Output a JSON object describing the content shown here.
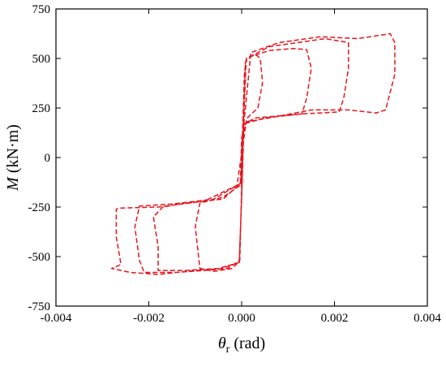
{
  "chart_data": {
    "type": "line",
    "title": "",
    "xlabel": {
      "symbol": "θ",
      "subscript": "r",
      "unit": " (rad)"
    },
    "ylabel": {
      "symbol": "M",
      "unit": " (kN·m)"
    },
    "xlim": [
      -0.004,
      0.004
    ],
    "ylim": [
      -750,
      750
    ],
    "x_ticks": [
      -0.004,
      -0.002,
      0.0,
      0.002,
      0.004
    ],
    "x_tick_labels": [
      "-0.004",
      "-0.002",
      "0.000",
      "0.002",
      "0.004"
    ],
    "y_ticks": [
      -750,
      -500,
      -250,
      0,
      250,
      500,
      750
    ],
    "y_tick_labels": [
      "-750",
      "-500",
      "-250",
      "0",
      "250",
      "500",
      "750"
    ],
    "grid": false,
    "line_color": "#e8141c",
    "line_style": "dashed",
    "series": [
      {
        "points": [
          [
            0.0,
            0
          ],
          [
            3e-05,
            200
          ],
          [
            6e-05,
            420
          ],
          [
            0.0001,
            500
          ],
          [
            0.0003,
            520
          ],
          [
            0.0004,
            500
          ],
          [
            0.00045,
            380
          ],
          [
            0.00035,
            250
          ],
          [
            0.00012,
            200
          ],
          [
            0.0,
            100
          ],
          [
            -3e-05,
            -140
          ],
          [
            -0.0004,
            -200
          ],
          [
            -0.0009,
            -230
          ],
          [
            -0.001,
            -350
          ],
          [
            -0.0009,
            -560
          ],
          [
            -0.0006,
            -575
          ],
          [
            -0.0002,
            -560
          ],
          [
            -4e-05,
            -520
          ],
          [
            0.0,
            -150
          ],
          [
            3e-05,
            150
          ],
          [
            8e-05,
            480
          ],
          [
            0.0002,
            510
          ],
          [
            0.0006,
            540
          ],
          [
            0.0011,
            550
          ],
          [
            0.0014,
            545
          ],
          [
            0.0015,
            450
          ],
          [
            0.0014,
            300
          ],
          [
            0.0013,
            220
          ],
          [
            0.0008,
            210
          ],
          [
            0.0003,
            200
          ],
          [
            5e-05,
            170
          ],
          [
            -2e-05,
            -130
          ],
          [
            -0.0004,
            -210
          ],
          [
            -0.0012,
            -230
          ],
          [
            -0.0017,
            -250
          ],
          [
            -0.0019,
            -300
          ],
          [
            -0.0018,
            -450
          ],
          [
            -0.0018,
            -570
          ],
          [
            -0.0012,
            -570
          ],
          [
            -0.0005,
            -560
          ],
          [
            -5e-05,
            -530
          ],
          [
            0.0,
            -200
          ],
          [
            4e-05,
            180
          ],
          [
            0.0001,
            500
          ],
          [
            0.0006,
            560
          ],
          [
            0.0012,
            580
          ],
          [
            0.0018,
            600
          ],
          [
            0.0023,
            580
          ],
          [
            0.0023,
            450
          ],
          [
            0.0022,
            300
          ],
          [
            0.0021,
            230
          ],
          [
            0.0013,
            220
          ],
          [
            0.0005,
            200
          ],
          [
            5e-05,
            170
          ],
          [
            -2e-05,
            -130
          ],
          [
            -0.0006,
            -210
          ],
          [
            -0.0015,
            -235
          ],
          [
            -0.0022,
            -245
          ],
          [
            -0.0023,
            -350
          ],
          [
            -0.0022,
            -520
          ],
          [
            -0.0021,
            -580
          ],
          [
            -0.0014,
            -580
          ],
          [
            -0.0005,
            -565
          ],
          [
            -5e-05,
            -530
          ],
          [
            0.0,
            -200
          ],
          [
            5e-05,
            180
          ],
          [
            0.0002,
            530
          ],
          [
            0.0008,
            580
          ],
          [
            0.0017,
            610
          ],
          [
            0.0025,
            600
          ],
          [
            0.0032,
            625
          ],
          [
            0.0033,
            580
          ],
          [
            0.0033,
            420
          ],
          [
            0.0031,
            240
          ],
          [
            0.0029,
            225
          ],
          [
            0.0023,
            240
          ],
          [
            0.0015,
            240
          ],
          [
            0.0006,
            200
          ],
          [
            0.0001,
            180
          ],
          [
            -0.0001,
            -140
          ],
          [
            -0.0008,
            -220
          ],
          [
            -0.0018,
            -250
          ],
          [
            -0.0026,
            -255
          ],
          [
            -0.0027,
            -260
          ],
          [
            -0.0027,
            -400
          ],
          [
            -0.0026,
            -540
          ],
          [
            -0.0028,
            -560
          ],
          [
            -0.0024,
            -580
          ],
          [
            -0.0018,
            -590
          ],
          [
            -0.001,
            -570
          ],
          [
            -0.0003,
            -560
          ],
          [
            -5e-05,
            -520
          ],
          [
            0.0,
            -200
          ],
          [
            0.0,
            0
          ]
        ]
      }
    ]
  }
}
